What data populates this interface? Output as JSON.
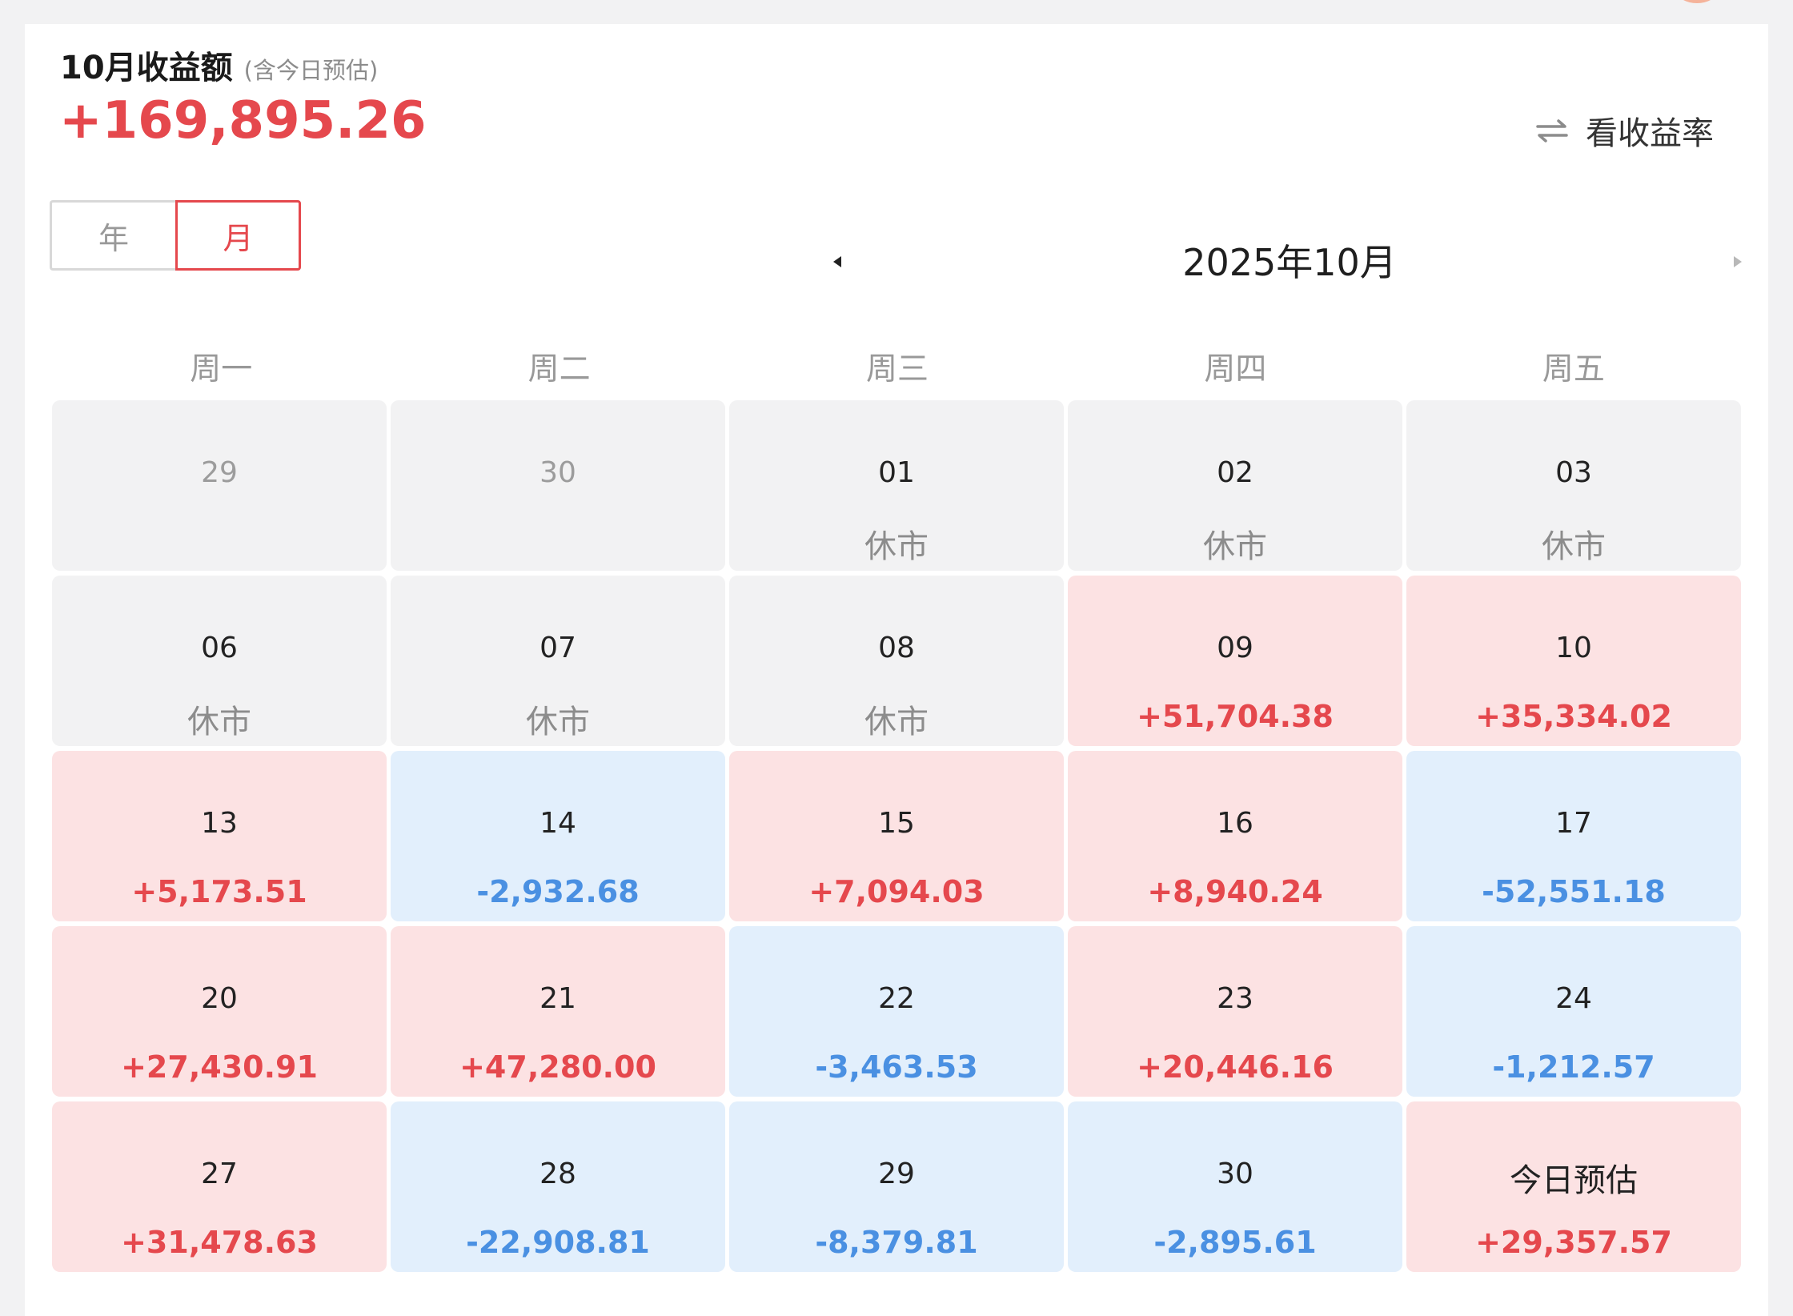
{
  "header": {
    "title": "10月收益额",
    "note": "(含今日预估)",
    "total": "+169,895.26",
    "rate_toggle_label": "看收益率"
  },
  "segment": {
    "year_label": "年",
    "month_label": "月",
    "selected": "月"
  },
  "calendar": {
    "month_label": "2025年10月",
    "weekdays": [
      "周一",
      "周二",
      "周三",
      "周四",
      "周五"
    ],
    "rows": [
      [
        {
          "day": "29",
          "value": "",
          "state": "other"
        },
        {
          "day": "30",
          "value": "",
          "state": "other"
        },
        {
          "day": "01",
          "value": "休市",
          "state": "closed"
        },
        {
          "day": "02",
          "value": "休市",
          "state": "closed"
        },
        {
          "day": "03",
          "value": "休市",
          "state": "closed"
        }
      ],
      [
        {
          "day": "06",
          "value": "休市",
          "state": "closed"
        },
        {
          "day": "07",
          "value": "休市",
          "state": "closed"
        },
        {
          "day": "08",
          "value": "休市",
          "state": "closed"
        },
        {
          "day": "09",
          "value": "+51,704.38",
          "state": "gain"
        },
        {
          "day": "10",
          "value": "+35,334.02",
          "state": "gain"
        }
      ],
      [
        {
          "day": "13",
          "value": "+5,173.51",
          "state": "gain"
        },
        {
          "day": "14",
          "value": "-2,932.68",
          "state": "loss"
        },
        {
          "day": "15",
          "value": "+7,094.03",
          "state": "gain"
        },
        {
          "day": "16",
          "value": "+8,940.24",
          "state": "gain"
        },
        {
          "day": "17",
          "value": "-52,551.18",
          "state": "loss"
        }
      ],
      [
        {
          "day": "20",
          "value": "+27,430.91",
          "state": "gain"
        },
        {
          "day": "21",
          "value": "+47,280.00",
          "state": "gain"
        },
        {
          "day": "22",
          "value": "-3,463.53",
          "state": "loss"
        },
        {
          "day": "23",
          "value": "+20,446.16",
          "state": "gain"
        },
        {
          "day": "24",
          "value": "-1,212.57",
          "state": "loss"
        }
      ],
      [
        {
          "day": "27",
          "value": "+31,478.63",
          "state": "gain"
        },
        {
          "day": "28",
          "value": "-22,908.81",
          "state": "loss"
        },
        {
          "day": "29",
          "value": "-8,379.81",
          "state": "loss"
        },
        {
          "day": "30",
          "value": "-2,895.61",
          "state": "loss"
        },
        {
          "day": "今日预估",
          "value": "+29,357.57",
          "state": "gain"
        }
      ]
    ]
  },
  "colors": {
    "gain_text": "#e5484d",
    "loss_text": "#4a90e2",
    "gain_bg": "#fce2e3",
    "loss_bg": "#e2effc",
    "neutral_bg": "#f2f2f3"
  },
  "icons": {
    "rate_toggle": "swap-arrows-icon",
    "prev": "triangle-left-icon",
    "next": "triangle-right-icon"
  }
}
